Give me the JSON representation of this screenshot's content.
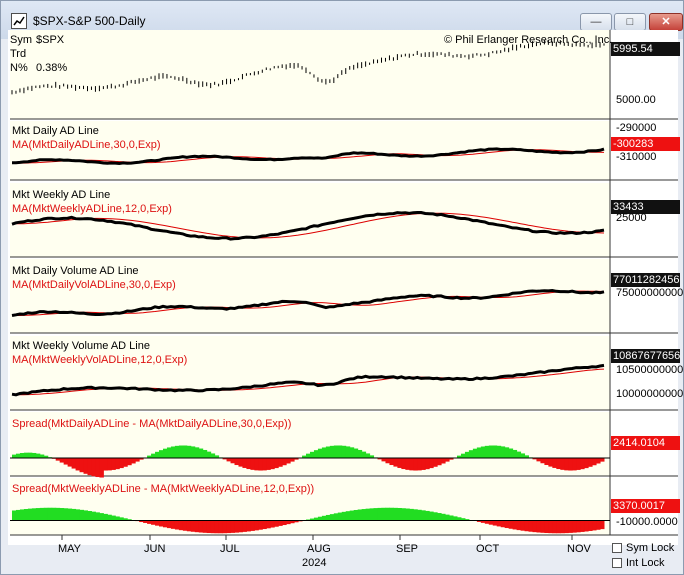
{
  "window": {
    "title": "$SPX-S&P 500-Daily",
    "buttons": {
      "minimize": "—",
      "maximize": "□",
      "close": "✕"
    }
  },
  "header": {
    "sym_label": "Sym",
    "sym_value": "$SPX",
    "trd_label": "Trd",
    "n_label": "N%",
    "n_value": "0.38%",
    "copyright": "© Phil Erlanger Research Co., Inc."
  },
  "panes": [
    {
      "title": "",
      "ma": "",
      "badge": "5995.54",
      "badge_color": "black",
      "axis": [
        "5000.00"
      ]
    },
    {
      "title": "Mkt Daily AD Line",
      "ma": "MA(MktDailyADLine,30,0,Exp)",
      "badge": "-300283",
      "badge_color": "red",
      "axis": [
        "-290000",
        "-310000"
      ]
    },
    {
      "title": "Mkt Weekly AD Line",
      "ma": "MA(MktWeeklyADLine,12,0,Exp)",
      "badge": "33433",
      "badge_color": "black",
      "axis": [
        "25000"
      ]
    },
    {
      "title": "Mkt Daily Volume AD Line",
      "ma": "MA(MktDailyVolADLine,30,0,Exp)",
      "badge": "77011282456",
      "badge_color": "black",
      "axis": [
        "75000000000"
      ]
    },
    {
      "title": "Mkt Weekly Volume AD Line",
      "ma": "MA(MktWeeklyVolADLine,12,0,Exp)",
      "badge": "10867677656",
      "badge_color": "black",
      "axis": [
        "10500000000",
        "10000000000"
      ]
    },
    {
      "title": "Spread(MktDailyADLine - MA(MktDailyADLine,30,0,Exp))",
      "ma": "",
      "badge": "2414.0104",
      "badge_color": "red",
      "axis": []
    },
    {
      "title": "Spread(MktWeeklyADLine - MA(MktWeeklyADLine,12,0,Exp))",
      "ma": "",
      "badge": "3370.0017",
      "badge_color": "red",
      "axis": [
        "-10000.0000"
      ]
    }
  ],
  "x_axis": {
    "months": [
      "MAY",
      "JUN",
      "JUL",
      "AUG",
      "SEP",
      "OCT",
      "NOV"
    ],
    "year": "2024"
  },
  "controls": {
    "sym_lock": "Sym Lock",
    "int_lock": "Int Lock"
  },
  "colors": {
    "main_line": "#000000",
    "ma_line": "#dd0000",
    "spread_pos": "#22dd22",
    "spread_neg": "#ee1111",
    "pane_bg": "#fffff0"
  }
}
